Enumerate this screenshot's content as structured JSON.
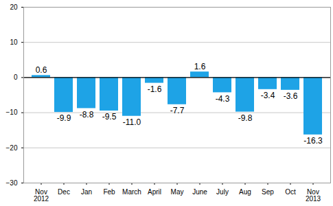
{
  "chart_data": {
    "type": "bar",
    "categories": [
      "Nov\n2012",
      "Dec",
      "Jan",
      "Feb",
      "March",
      "April",
      "May",
      "June",
      "July",
      "Aug",
      "Sep",
      "Oct",
      "Nov\n2013"
    ],
    "values": [
      0.6,
      -9.9,
      -8.8,
      -9.5,
      -11.0,
      -1.6,
      -7.7,
      1.6,
      -4.3,
      -9.8,
      -3.4,
      -3.6,
      -16.3
    ],
    "value_labels": [
      "0.6",
      "-9.9",
      "-8.8",
      "-9.5",
      "-11.0",
      "-1.6",
      "-7.7",
      "1.6",
      "-4.3",
      "-9.8",
      "-3.4",
      "-3.6",
      "-16.3"
    ],
    "color": "#1ea3e6",
    "ylim": [
      -30,
      20
    ],
    "yticks": [
      -30,
      -20,
      -10,
      0,
      10,
      20
    ],
    "grid": true,
    "data_labels": true
  }
}
